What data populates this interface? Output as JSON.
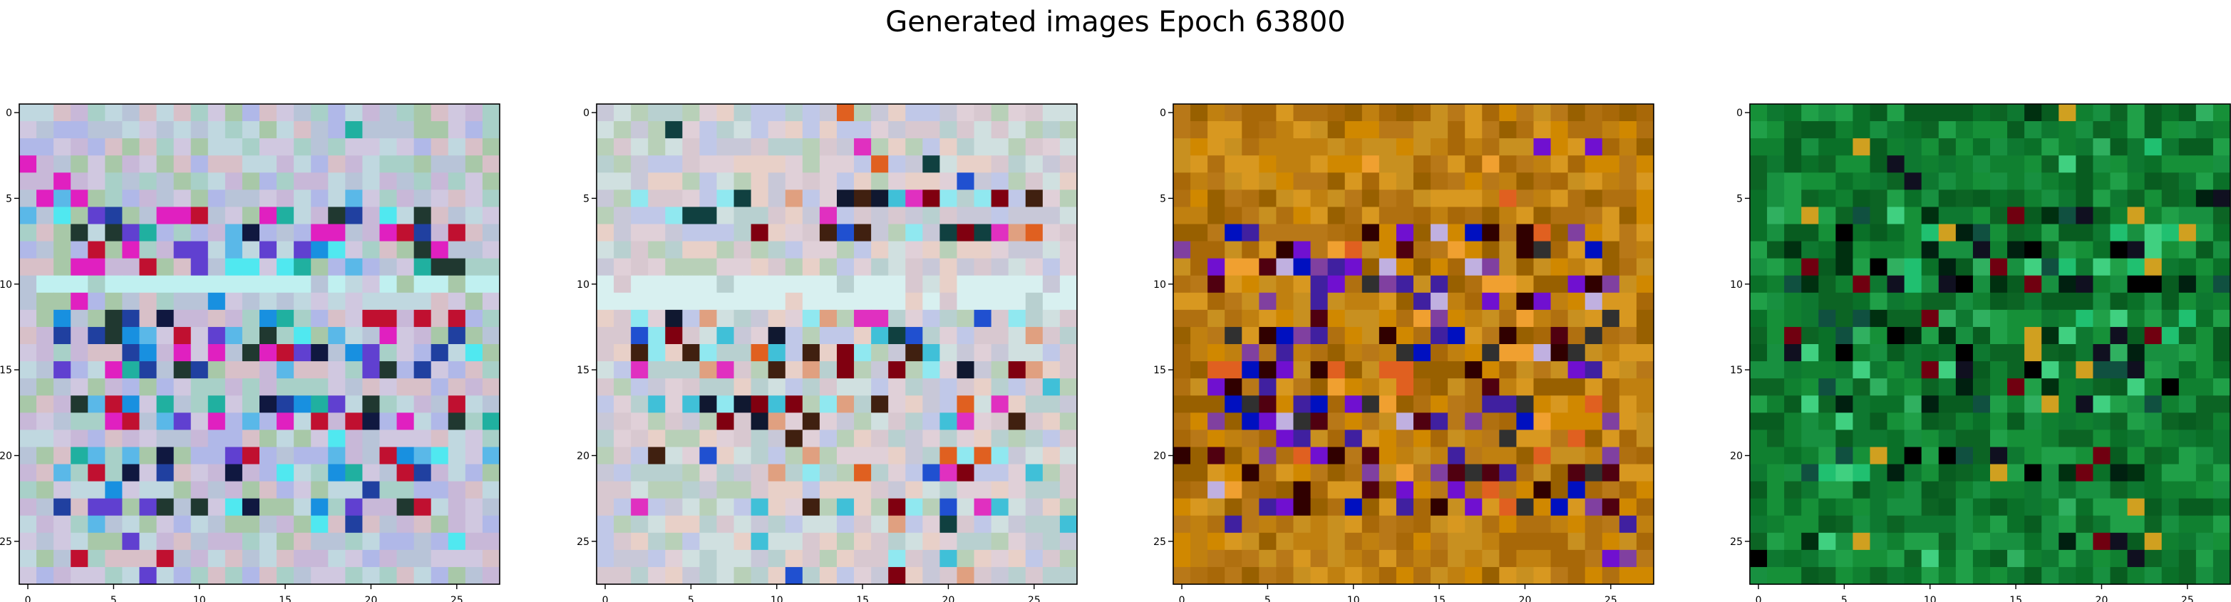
{
  "figure": {
    "title": "Generated images Epoch 63800"
  },
  "chart_data": {
    "type": "heatmap",
    "grid_size": 28,
    "xticks": [
      0,
      5,
      10,
      15,
      20,
      25
    ],
    "yticks": [
      0,
      5,
      10,
      15,
      20,
      25
    ],
    "xlim": [
      -0.5,
      27.5
    ],
    "ylim": [
      27.5,
      -0.5
    ],
    "panels": [
      {
        "palette": [
          "#b8c4d8",
          "#c8b8d8",
          "#a8d0c8",
          "#d0c8e0",
          "#b0b8e8",
          "#c0d8e0",
          "#d8c0c8",
          "#a8c8a8"
        ],
        "accents": [
          "#5ab8e8",
          "#1890e0",
          "#2040a0",
          "#101840",
          "#e020c0",
          "#20b0a0",
          "#c01030",
          "#6040d0",
          "#203830",
          "#50e8f0"
        ],
        "accent_rows": [
          6,
          7,
          8,
          9,
          12,
          13,
          14,
          15,
          17,
          18,
          20,
          21,
          23
        ],
        "light_rows": [
          10
        ],
        "light_color": "#c0f0f0"
      },
      {
        "palette": [
          "#c8c8d8",
          "#d8c8d0",
          "#b8d0d0",
          "#e0d0d8",
          "#c0c8e8",
          "#d0e0e0",
          "#e8d0c8",
          "#b8d0b8"
        ],
        "accents": [
          "#40c0d8",
          "#2050d0",
          "#800010",
          "#101830",
          "#e030c0",
          "#e06020",
          "#e0a080",
          "#402010",
          "#104040",
          "#90e8f0"
        ],
        "accent_rows": [
          5,
          6,
          7,
          12,
          13,
          14,
          15,
          17,
          18,
          20,
          21,
          23
        ],
        "light_rows": [
          10,
          11
        ],
        "light_color": "#d8f0f0"
      },
      {
        "palette": [
          "#c08010",
          "#d08800",
          "#a86808",
          "#b87818",
          "#c89020",
          "#986000",
          "#d89820",
          "#b07010"
        ],
        "accents": [
          "#300000",
          "#500010",
          "#7010d0",
          "#4020a0",
          "#8040a0",
          "#e06020",
          "#0010c0",
          "#303030",
          "#f0a030",
          "#c0b0e0"
        ],
        "accent_rows": [
          7,
          8,
          9,
          10,
          11,
          12,
          13,
          14,
          15,
          16,
          17,
          18,
          19,
          20,
          21,
          22,
          23
        ],
        "light_rows": [],
        "light_color": "#e8c890"
      },
      {
        "palette": [
          "#108030",
          "#0a7028",
          "#189040",
          "#0c6424",
          "#20a048",
          "#0e7830",
          "#169038",
          "#085c20"
        ],
        "accents": [
          "#003010",
          "#002010",
          "#40d080",
          "#30b060",
          "#000000",
          "#101020",
          "#105040",
          "#20c070",
          "#d0a020",
          "#700010"
        ],
        "accent_rows": [
          6,
          7,
          8,
          9,
          10,
          12,
          13,
          14,
          15,
          16,
          17,
          20,
          21,
          25
        ],
        "light_rows": [],
        "light_color": "#30b060"
      }
    ]
  }
}
